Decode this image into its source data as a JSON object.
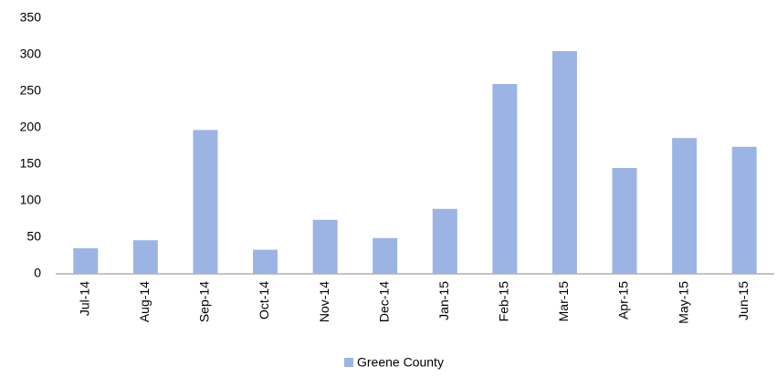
{
  "chart_data": {
    "type": "bar",
    "categories": [
      "Jul-14",
      "Aug-14",
      "Sep-14",
      "Oct-14",
      "Nov-14",
      "Dec-14",
      "Jan-15",
      "Feb-15",
      "Mar-15",
      "Apr-15",
      "May-15",
      "Jun-15"
    ],
    "series": [
      {
        "name": "Greene County",
        "color": "#9cb4e4",
        "values": [
          35,
          46,
          197,
          33,
          74,
          49,
          89,
          260,
          305,
          145,
          186,
          174
        ]
      }
    ],
    "ylim": [
      0,
      350
    ],
    "yticks": [
      0,
      50,
      100,
      150,
      200,
      250,
      300,
      350
    ],
    "grid": false,
    "legend": "bottom"
  }
}
